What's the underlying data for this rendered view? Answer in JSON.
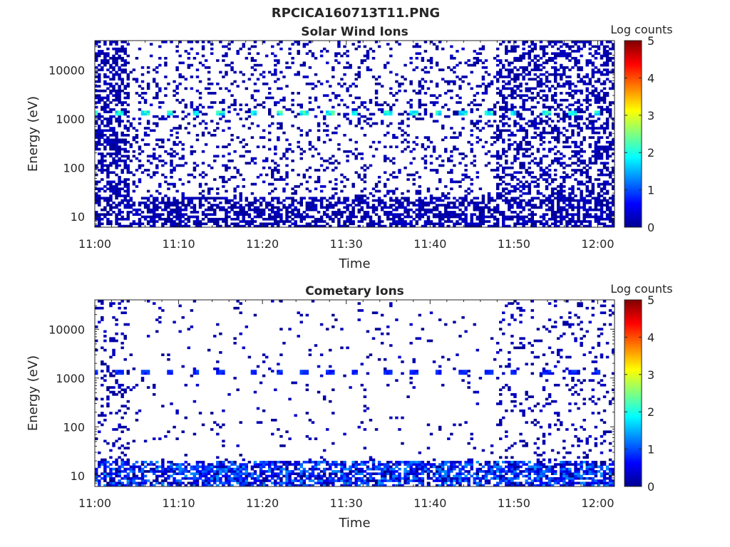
{
  "figure_title": "RPCICA160713T11.PNG",
  "chart_data": [
    {
      "type": "heatmap",
      "title": "Solar Wind Ions",
      "xlabel": "Time",
      "ylabel": "Energy (eV)",
      "x_ticks": [
        "11:00",
        "11:10",
        "11:20",
        "11:30",
        "11:40",
        "11:50",
        "12:00"
      ],
      "x_range": [
        "11:00",
        "12:02"
      ],
      "y_scale": "log",
      "y_ticks": [
        10,
        100,
        1000,
        10000
      ],
      "y_range": [
        6,
        40000
      ],
      "colorbar": {
        "label": "Log counts",
        "range": [
          0,
          5
        ],
        "ticks": [
          0,
          1,
          2,
          3,
          4,
          5
        ],
        "colormap": "jet"
      },
      "features": {
        "background_noise_density": 0.16,
        "dense_periods": [
          {
            "start": "11:00",
            "end": "11:04",
            "density": 0.55
          },
          {
            "start": "11:48",
            "end": "12:02",
            "density": 0.42
          }
        ],
        "low_energy_band": {
          "max_energy": 25,
          "density": 0.6
        },
        "periodic_peaks": {
          "energy": 1300,
          "level": 2.0,
          "times": [
            "11:00",
            "11:03",
            "11:06",
            "11:09",
            "11:12",
            "11:15",
            "11:19",
            "11:22",
            "11:25",
            "11:28",
            "11:31",
            "11:35",
            "11:38",
            "11:41",
            "11:44",
            "11:47",
            "11:50",
            "11:54",
            "11:57",
            "12:00"
          ]
        }
      }
    },
    {
      "type": "heatmap",
      "title": "Cometary Ions",
      "xlabel": "Time",
      "ylabel": "Energy (eV)",
      "x_ticks": [
        "11:00",
        "11:10",
        "11:20",
        "11:30",
        "11:40",
        "11:50",
        "12:00"
      ],
      "x_range": [
        "11:00",
        "12:02"
      ],
      "y_scale": "log",
      "y_ticks": [
        10,
        100,
        1000,
        10000
      ],
      "y_range": [
        6,
        40000
      ],
      "colorbar": {
        "label": "Log counts",
        "range": [
          0,
          5
        ],
        "ticks": [
          0,
          1,
          2,
          3,
          4,
          5
        ],
        "colormap": "jet"
      },
      "features": {
        "background_noise_density": 0.035,
        "dense_periods": [
          {
            "start": "11:00",
            "end": "11:04",
            "density": 0.15
          },
          {
            "start": "11:48",
            "end": "12:02",
            "density": 0.12
          }
        ],
        "low_energy_band": {
          "max_energy": 20,
          "density": 0.7,
          "level": 1.4
        },
        "periodic_peaks": {
          "energy": 1300,
          "level": 0.8,
          "times": [
            "11:00",
            "11:03",
            "11:06",
            "11:09",
            "11:12",
            "11:15",
            "11:19",
            "11:22",
            "11:25",
            "11:28",
            "11:31",
            "11:35",
            "11:38",
            "11:41",
            "11:44",
            "11:47",
            "11:50",
            "11:54",
            "11:57",
            "12:00"
          ]
        }
      }
    }
  ]
}
